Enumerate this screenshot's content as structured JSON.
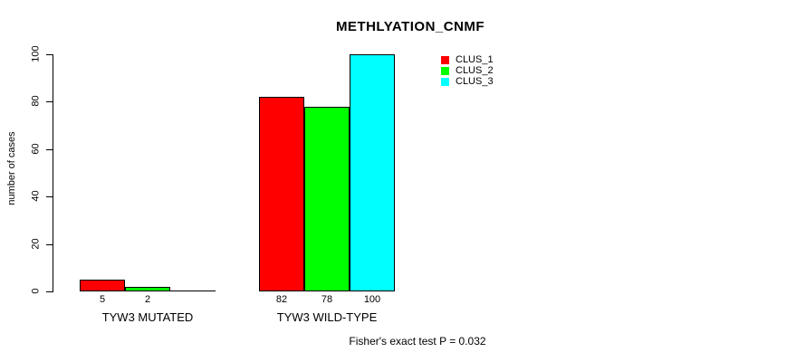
{
  "chart_data": {
    "type": "bar",
    "title": "METHLYATION_CNMF",
    "ylabel": "number of cases",
    "xlabel": "",
    "categories": [
      "TYW3 MUTATED",
      "TYW3 WILD-TYPE"
    ],
    "series": [
      {
        "name": "CLUS_1",
        "color": "#ff0000",
        "values": [
          5,
          82
        ]
      },
      {
        "name": "CLUS_2",
        "color": "#00ff00",
        "values": [
          2,
          78
        ]
      },
      {
        "name": "CLUS_3",
        "color": "#00ffff",
        "values": [
          0,
          100
        ]
      }
    ],
    "bar_labels": [
      [
        "5",
        "2",
        ""
      ],
      [
        "82",
        "78",
        "100"
      ]
    ],
    "yticks": [
      0,
      20,
      40,
      60,
      80,
      100
    ],
    "ylim": [
      0,
      100
    ],
    "grid": false,
    "legend_position": "upper-right",
    "annotation": "Fisher's exact test P = 0.032",
    "bar_border_color": "#000000",
    "axis_color": "#000000"
  }
}
